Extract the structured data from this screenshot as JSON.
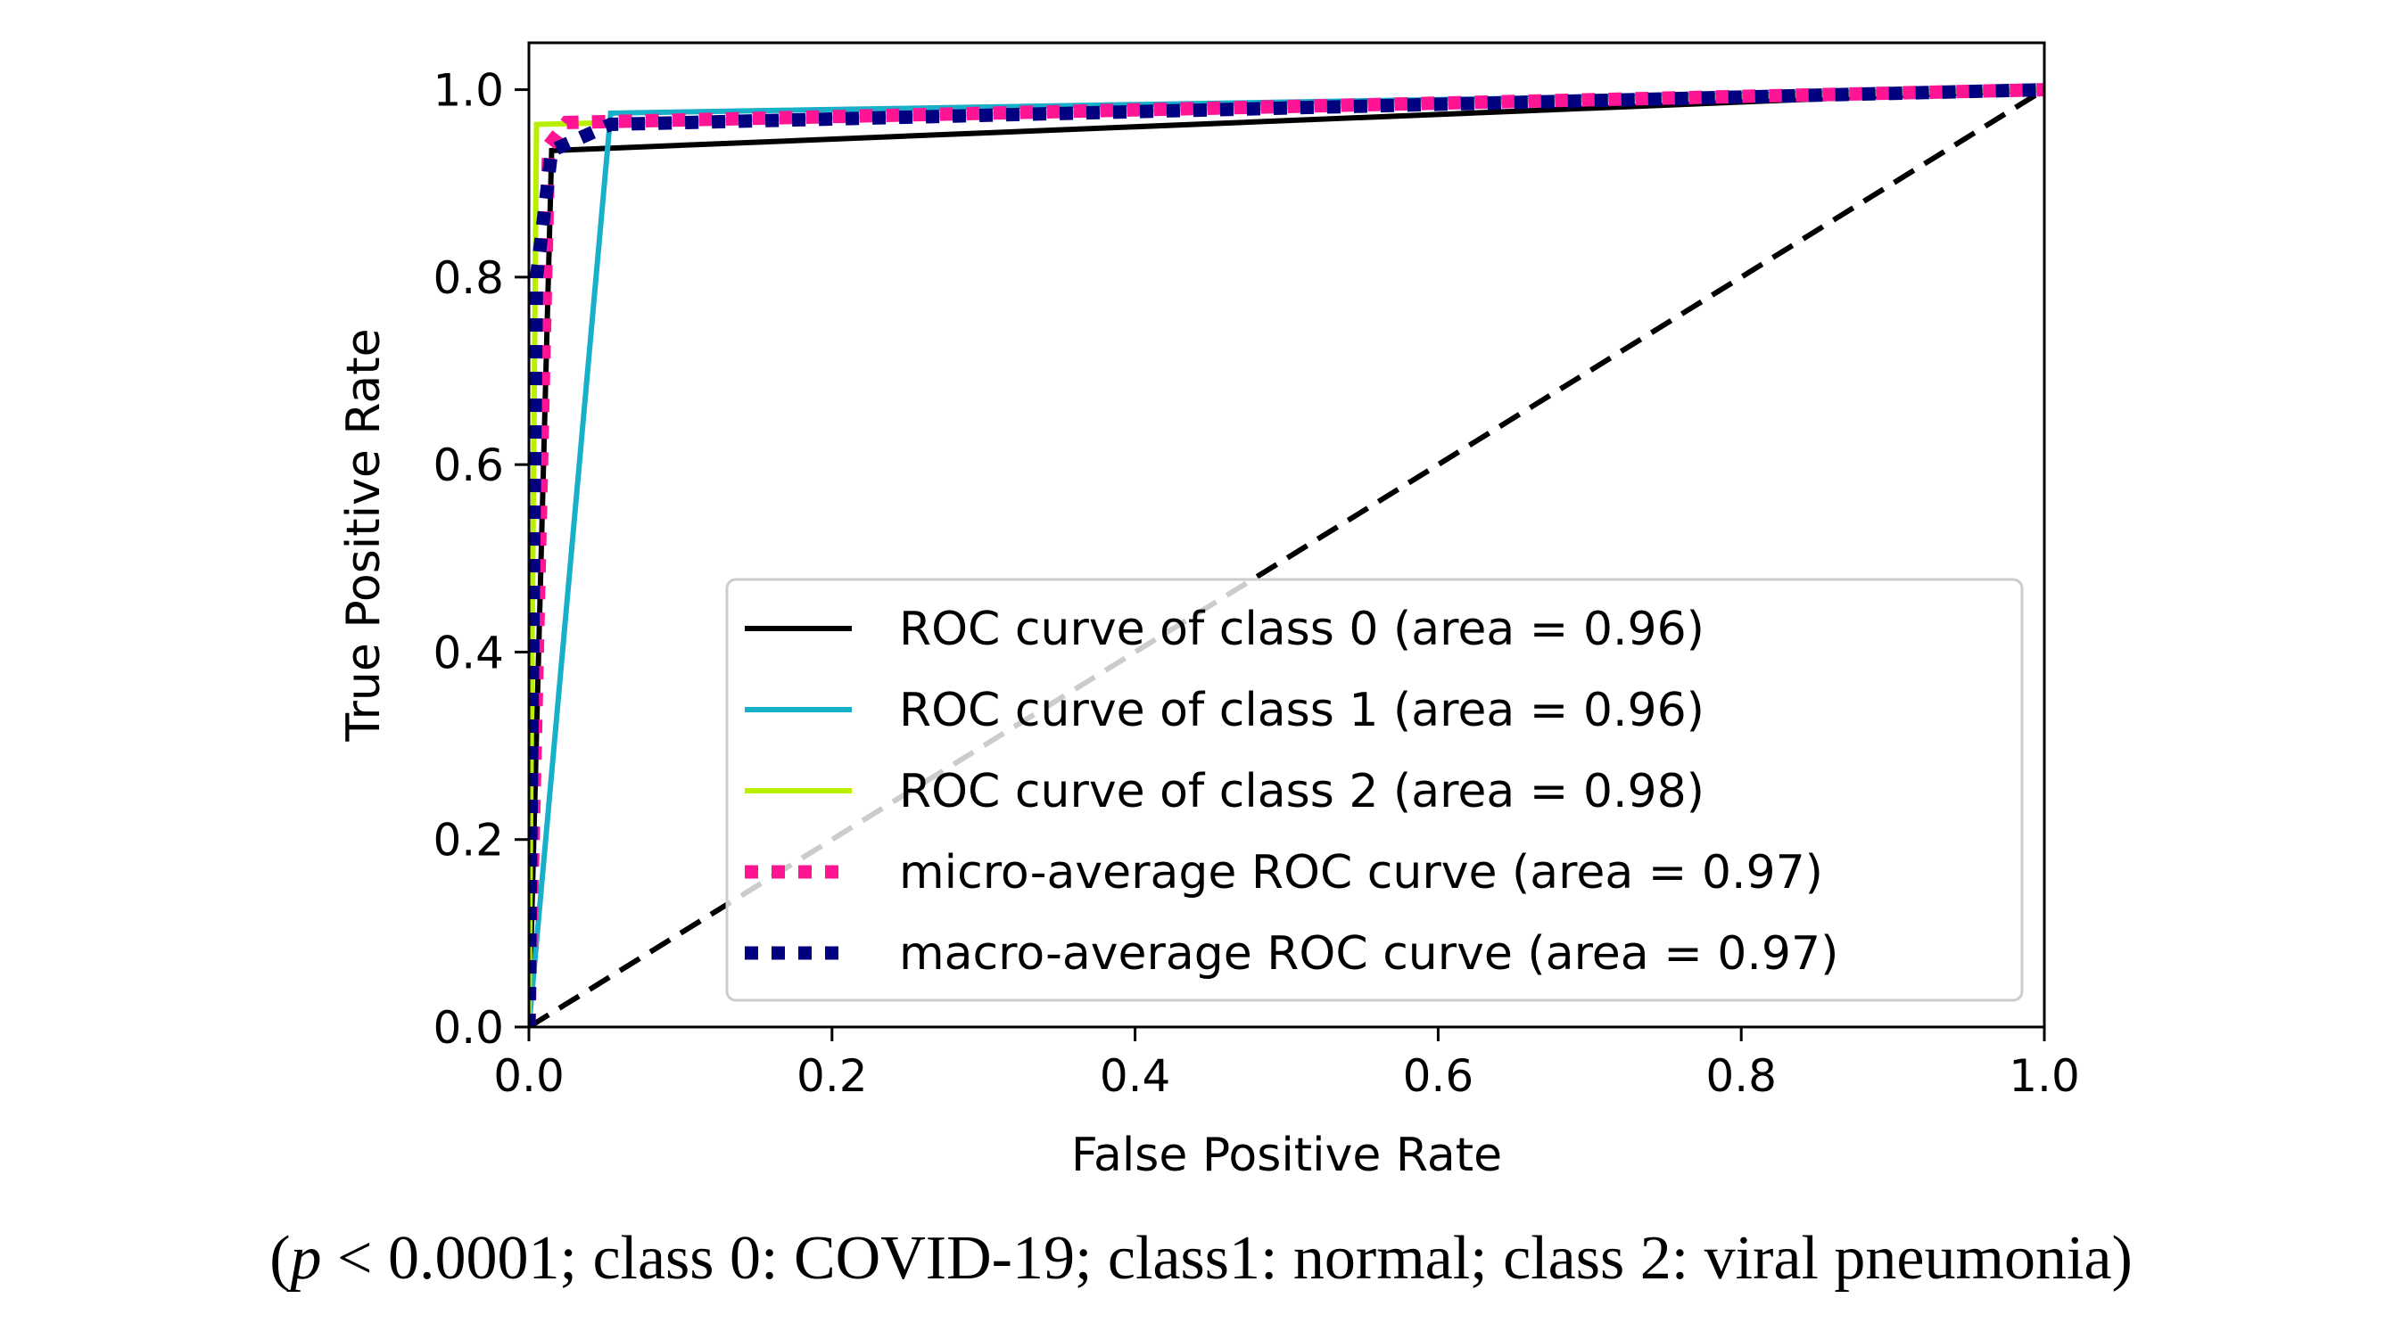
{
  "chart_data": {
    "type": "line",
    "title": "",
    "xlabel": "False Positive Rate",
    "ylabel": "True Positive Rate",
    "xlim": [
      0.0,
      1.0
    ],
    "ylim": [
      0.0,
      1.05
    ],
    "xticks": [
      "0.0",
      "0.2",
      "0.4",
      "0.6",
      "0.8",
      "1.0"
    ],
    "yticks": [
      "0.0",
      "0.2",
      "0.4",
      "0.6",
      "0.8",
      "1.0"
    ],
    "grid": false,
    "legend_position": "lower-right",
    "series": [
      {
        "name": "ROC curve of class 0 (area = 0.96)",
        "color": "#000000",
        "style": "solid",
        "x": [
          0.0,
          0.015,
          1.0
        ],
        "y": [
          0.0,
          0.935,
          1.0
        ]
      },
      {
        "name": "ROC curve of class 1 (area = 0.96)",
        "color": "#17b0c8",
        "style": "solid",
        "x": [
          0.0,
          0.054,
          1.0
        ],
        "y": [
          0.0,
          0.975,
          1.0
        ]
      },
      {
        "name": "ROC curve of class 2 (area = 0.98)",
        "color": "#b8f000",
        "style": "solid",
        "x": [
          0.0,
          0.005,
          1.0
        ],
        "y": [
          0.0,
          0.963,
          1.0
        ]
      },
      {
        "name": "micro-average ROC curve (area = 0.97)",
        "color": "#ff1493",
        "style": "dotted",
        "x": [
          0.0,
          0.013,
          0.025,
          1.0
        ],
        "y": [
          0.0,
          0.94,
          0.965,
          1.0
        ]
      },
      {
        "name": "macro-average ROC curve (area = 0.97)",
        "color": "#000080",
        "style": "dotted",
        "x": [
          0.0,
          0.005,
          0.015,
          0.054,
          1.0
        ],
        "y": [
          0.0,
          0.8,
          0.935,
          0.963,
          1.0
        ]
      }
    ],
    "reference_line": {
      "x": [
        0.0,
        1.0
      ],
      "y": [
        0.0,
        1.0
      ],
      "color": "#000000",
      "style": "dashed"
    }
  },
  "caption": {
    "open": "(",
    "p_symbol": "p",
    "rest": " < 0.0001; class 0: COVID-19; class1: normal; class 2: viral pneumonia)"
  }
}
